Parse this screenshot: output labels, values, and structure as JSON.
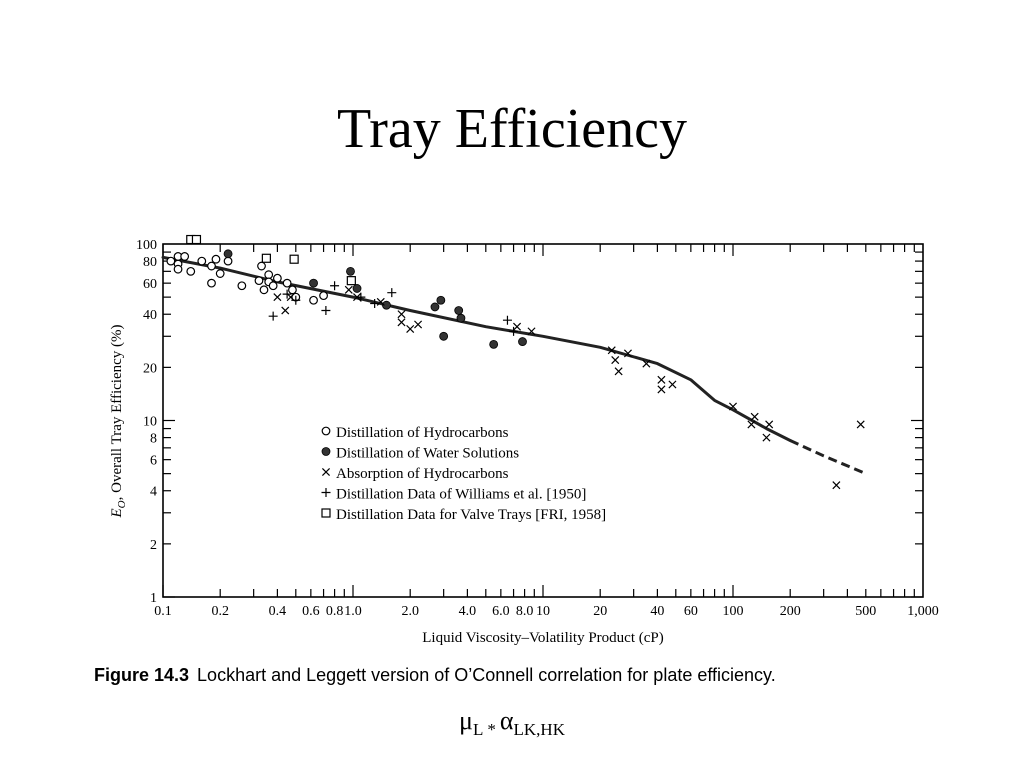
{
  "slide": {
    "title": "Tray Efficiency",
    "formula": {
      "mu": "μ",
      "mu_sub": "L",
      "star": "*",
      "alpha": "α",
      "alpha_sub": "LK,HK"
    }
  },
  "figure": {
    "label": "Figure 14.3",
    "caption": "Lockhart and Leggett version of O’Connell correlation for plate efficiency."
  },
  "chart_data": {
    "type": "scatter",
    "xlabel": "Liquid Viscosity–Volatility Product (cP)",
    "ylabel_symbol": "E",
    "ylabel_subscript": "O",
    "ylabel_rest": ", Overall Tray Efficiency (%)",
    "xscale": "log",
    "yscale": "log",
    "xlim": [
      0.1,
      1000
    ],
    "ylim": [
      1,
      100
    ],
    "x_tick_labels": [
      {
        "value": 0.1,
        "label": "0.1"
      },
      {
        "value": 0.2,
        "label": "0.2"
      },
      {
        "value": 0.4,
        "label": "0.4"
      },
      {
        "value": 0.6,
        "label": "0.6"
      },
      {
        "value": 0.8,
        "label": "0.8"
      },
      {
        "value": 1.0,
        "label": "1.0"
      },
      {
        "value": 2.0,
        "label": "2.0"
      },
      {
        "value": 4.0,
        "label": "4.0"
      },
      {
        "value": 6.0,
        "label": "6.0"
      },
      {
        "value": 8.0,
        "label": "8.0"
      },
      {
        "value": 10,
        "label": "10"
      },
      {
        "value": 20,
        "label": "20"
      },
      {
        "value": 40,
        "label": "40"
      },
      {
        "value": 60,
        "label": "60"
      },
      {
        "value": 100,
        "label": "100"
      },
      {
        "value": 200,
        "label": "200"
      },
      {
        "value": 500,
        "label": "500"
      },
      {
        "value": 1000,
        "label": "1,000"
      }
    ],
    "y_tick_labels": [
      {
        "value": 1,
        "label": "1"
      },
      {
        "value": 2,
        "label": "2"
      },
      {
        "value": 4,
        "label": "4"
      },
      {
        "value": 6,
        "label": "6"
      },
      {
        "value": 8,
        "label": "8"
      },
      {
        "value": 10,
        "label": "10"
      },
      {
        "value": 20,
        "label": "20"
      },
      {
        "value": 40,
        "label": "40"
      },
      {
        "value": 60,
        "label": "60"
      },
      {
        "value": 80,
        "label": "80"
      },
      {
        "value": 100,
        "label": "100"
      }
    ],
    "legend_position": "center-left",
    "correlation_curve": {
      "solid": [
        [
          0.1,
          84
        ],
        [
          0.2,
          73
        ],
        [
          0.4,
          61
        ],
        [
          1.0,
          50
        ],
        [
          2.0,
          42
        ],
        [
          5.0,
          34
        ],
        [
          10,
          30
        ],
        [
          20,
          26
        ],
        [
          40,
          21
        ],
        [
          60,
          17
        ],
        [
          80,
          13
        ],
        [
          100,
          11.5
        ],
        [
          150,
          9
        ],
        [
          200,
          7.7
        ]
      ],
      "dashed": [
        [
          200,
          7.7
        ],
        [
          300,
          6.3
        ],
        [
          500,
          5.0
        ]
      ]
    },
    "series": [
      {
        "name": "Distillation of Hydrocarbons",
        "marker": "open-circle",
        "points": [
          [
            0.11,
            80
          ],
          [
            0.12,
            77
          ],
          [
            0.12,
            85
          ],
          [
            0.12,
            72
          ],
          [
            0.13,
            85
          ],
          [
            0.14,
            70
          ],
          [
            0.16,
            80
          ],
          [
            0.18,
            75
          ],
          [
            0.18,
            60
          ],
          [
            0.19,
            82
          ],
          [
            0.2,
            68
          ],
          [
            0.22,
            80
          ],
          [
            0.26,
            58
          ],
          [
            0.32,
            62
          ],
          [
            0.33,
            75
          ],
          [
            0.34,
            55
          ],
          [
            0.36,
            67
          ],
          [
            0.36,
            61
          ],
          [
            0.38,
            58
          ],
          [
            0.4,
            64
          ],
          [
            0.45,
            60
          ],
          [
            0.48,
            55
          ],
          [
            0.5,
            50
          ],
          [
            0.62,
            48
          ],
          [
            0.7,
            51
          ]
        ]
      },
      {
        "name": "Distillation of Water Solutions",
        "marker": "filled-circle",
        "points": [
          [
            0.22,
            88
          ],
          [
            0.62,
            60
          ],
          [
            0.97,
            70
          ],
          [
            1.05,
            56
          ],
          [
            1.5,
            45
          ],
          [
            2.7,
            44
          ],
          [
            2.9,
            48
          ],
          [
            3.0,
            30
          ],
          [
            3.6,
            42
          ],
          [
            3.7,
            38
          ],
          [
            5.5,
            27
          ],
          [
            7.8,
            28
          ]
        ]
      },
      {
        "name": "Absorption of Hydrocarbons",
        "marker": "x",
        "points": [
          [
            0.4,
            50
          ],
          [
            0.44,
            42
          ],
          [
            0.47,
            50
          ],
          [
            0.95,
            55
          ],
          [
            1.05,
            50
          ],
          [
            1.4,
            47
          ],
          [
            1.8,
            40
          ],
          [
            1.8,
            36
          ],
          [
            2.0,
            33
          ],
          [
            2.2,
            35
          ],
          [
            7.3,
            34
          ],
          [
            8.7,
            32
          ],
          [
            23,
            25
          ],
          [
            24,
            22
          ],
          [
            25,
            19
          ],
          [
            28,
            24
          ],
          [
            35,
            21
          ],
          [
            42,
            17
          ],
          [
            42,
            15
          ],
          [
            48,
            16
          ],
          [
            100,
            12
          ],
          [
            125,
            9.5
          ],
          [
            130,
            10.5
          ],
          [
            150,
            8
          ],
          [
            155,
            9.5
          ],
          [
            350,
            4.3
          ],
          [
            470,
            9.5
          ]
        ]
      },
      {
        "name": "Distillation Data of Williams et al. [1950]",
        "marker": "plus",
        "points": [
          [
            0.38,
            39
          ],
          [
            0.45,
            52
          ],
          [
            0.5,
            48
          ],
          [
            0.72,
            42
          ],
          [
            0.8,
            58
          ],
          [
            1.1,
            50
          ],
          [
            1.3,
            46
          ],
          [
            1.6,
            53
          ],
          [
            6.5,
            37
          ],
          [
            7.0,
            32
          ]
        ]
      },
      {
        "name": "Distillation Data for Valve Trays [FRI, 1958]",
        "marker": "open-square",
        "points": [
          [
            0.14,
            106
          ],
          [
            0.15,
            106
          ],
          [
            0.35,
            83
          ],
          [
            0.49,
            82
          ],
          [
            0.98,
            62
          ]
        ]
      }
    ]
  }
}
